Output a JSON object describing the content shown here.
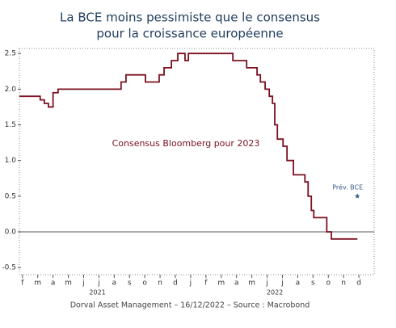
{
  "chart_data": {
    "type": "line",
    "title": [
      "La BCE moins pessimiste que le consensus",
      "pour la croissance européenne"
    ],
    "source": "Dorval Asset Management – 16/12/2022 – Source : Macrobond",
    "x_group_labels": [
      "2021",
      "2022"
    ],
    "xlim": [
      -0.2,
      23
    ],
    "xticks": [
      {
        "value": 0,
        "label": "f"
      },
      {
        "value": 1,
        "label": "m"
      },
      {
        "value": 2,
        "label": "a"
      },
      {
        "value": 3,
        "label": "m"
      },
      {
        "value": 4,
        "label": "j"
      },
      {
        "value": 5,
        "label": "j"
      },
      {
        "value": 6,
        "label": "a"
      },
      {
        "value": 7,
        "label": "s"
      },
      {
        "value": 8,
        "label": "o"
      },
      {
        "value": 9,
        "label": "n"
      },
      {
        "value": 10,
        "label": "d"
      },
      {
        "value": 11,
        "label": "j"
      },
      {
        "value": 12,
        "label": "f"
      },
      {
        "value": 13,
        "label": "m"
      },
      {
        "value": 14,
        "label": "a"
      },
      {
        "value": 15,
        "label": "m"
      },
      {
        "value": 16,
        "label": "j"
      },
      {
        "value": 17,
        "label": "j"
      },
      {
        "value": 18,
        "label": "a"
      },
      {
        "value": 19,
        "label": "s"
      },
      {
        "value": 20,
        "label": "o"
      },
      {
        "value": 21,
        "label": "n"
      },
      {
        "value": 22,
        "label": "d"
      }
    ],
    "ylim": [
      -0.6,
      2.57
    ],
    "yticks": [
      -0.5,
      {
        "value": 0,
        "label": "0.0"
      },
      0.5,
      {
        "value": 1,
        "label": "1.0"
      },
      1.5,
      {
        "value": 2,
        "label": "2.0"
      },
      2.5
    ],
    "reference_line": 0,
    "step": "post",
    "series": [
      {
        "name": "Consensus Bloomberg pour 2023",
        "color": "#7b1020",
        "x": [
          -0.2,
          1.16,
          1.43,
          1.7,
          2.0,
          2.33,
          6.45,
          6.77,
          8.04,
          8.94,
          9.26,
          9.74,
          10.16,
          10.63,
          10.85,
          13.76,
          14.66,
          15.34,
          15.56,
          15.87,
          16.14,
          16.35,
          16.5,
          16.67,
          17.04,
          17.3,
          17.72,
          18.47,
          18.68,
          18.89,
          19.05,
          19.9,
          20.2,
          21.9
        ],
        "values": [
          1.9,
          1.85,
          1.8,
          1.75,
          1.95,
          2.0,
          2.1,
          2.2,
          2.1,
          2.2,
          2.3,
          2.4,
          2.5,
          2.4,
          2.5,
          2.4,
          2.3,
          2.2,
          2.1,
          2.0,
          1.9,
          1.8,
          1.5,
          1.3,
          1.2,
          1.0,
          0.8,
          0.7,
          0.5,
          0.3,
          0.2,
          0.0,
          -0.1,
          -0.1
        ]
      },
      {
        "name": "Prév. BCE",
        "color": "#3b5a8a",
        "marker": "star",
        "x": [
          21.9
        ],
        "values": [
          0.5
        ]
      }
    ]
  }
}
